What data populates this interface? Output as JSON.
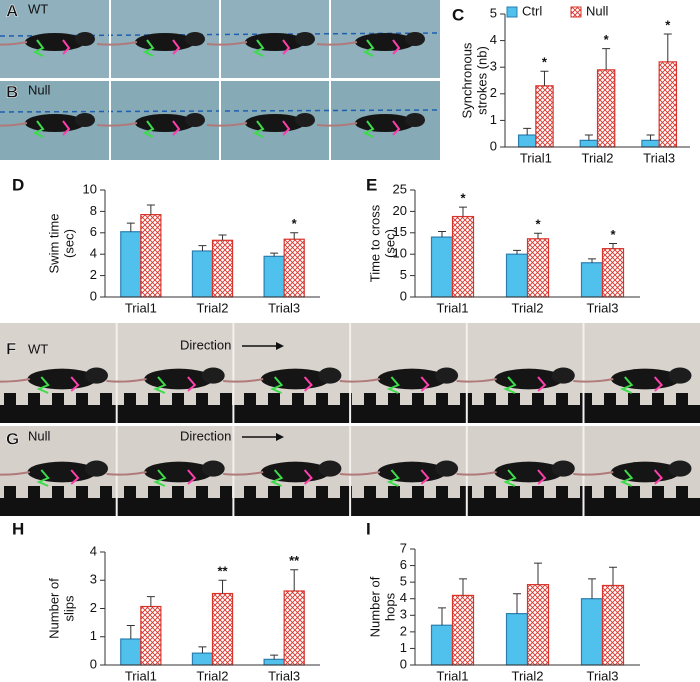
{
  "photo_panels": [
    {
      "letter": "A",
      "label": "WT"
    },
    {
      "letter": "B",
      "label": "Null"
    },
    {
      "letter": "F",
      "label": "WT",
      "annotation": "Direction"
    },
    {
      "letter": "G",
      "label": "Null",
      "annotation": "Direction"
    }
  ],
  "chart_data": [
    {
      "type": "bar",
      "panel_label": "C",
      "ylabel": [
        "Synchronous",
        "strokes (nb)"
      ],
      "categories": [
        "Trial1",
        "Trial2",
        "Trial3"
      ],
      "ylim": [
        0,
        5
      ],
      "yticks": [
        0,
        1,
        2,
        3,
        4,
        5
      ],
      "legend": "top",
      "series": [
        {
          "name": "Ctrl",
          "color": "#4fc1ec",
          "values": [
            0.45,
            0.25,
            0.25
          ],
          "errors": [
            0.25,
            0.2,
            0.2
          ]
        },
        {
          "name": "Null",
          "color": "#d9342b",
          "values": [
            2.3,
            2.9,
            3.2
          ],
          "errors": [
            0.55,
            0.8,
            1.05
          ]
        }
      ],
      "significance": [
        "*",
        "*",
        "*"
      ]
    },
    {
      "type": "bar",
      "panel_label": "D",
      "ylabel": [
        "Swim time",
        "(sec)"
      ],
      "categories": [
        "Trial1",
        "Trial2",
        "Trial3"
      ],
      "ylim": [
        0,
        10
      ],
      "yticks": [
        0,
        2,
        4,
        6,
        8,
        10
      ],
      "series": [
        {
          "color": "#4fc1ec",
          "values": [
            6.1,
            4.3,
            3.8
          ],
          "errors": [
            0.8,
            0.5,
            0.3
          ]
        },
        {
          "color": "#d9342b",
          "values": [
            7.7,
            5.3,
            5.4
          ],
          "errors": [
            0.9,
            0.5,
            0.6
          ]
        }
      ],
      "significance": [
        null,
        null,
        "*"
      ]
    },
    {
      "type": "bar",
      "panel_label": "E",
      "ylabel": [
        "Time to cross",
        "(sec)"
      ],
      "categories": [
        "Trial1",
        "Trial2",
        "Trial3"
      ],
      "ylim": [
        0,
        25
      ],
      "yticks": [
        0,
        5,
        10,
        15,
        20,
        25
      ],
      "series": [
        {
          "color": "#4fc1ec",
          "values": [
            14,
            10,
            8
          ],
          "errors": [
            1.3,
            0.9,
            0.9
          ]
        },
        {
          "color": "#d9342b",
          "values": [
            18.8,
            13.6,
            11.3
          ],
          "errors": [
            2.2,
            1.3,
            1.2
          ]
        }
      ],
      "significance": [
        "*",
        "*",
        "*"
      ]
    },
    {
      "type": "bar",
      "panel_label": "H",
      "ylabel": [
        "Number of",
        "slips"
      ],
      "categories": [
        "Trial1",
        "Trial2",
        "Trial3"
      ],
      "ylim": [
        0,
        4
      ],
      "yticks": [
        0,
        1,
        2,
        3,
        4
      ],
      "series": [
        {
          "color": "#4fc1ec",
          "values": [
            0.92,
            0.42,
            0.2
          ],
          "errors": [
            0.48,
            0.22,
            0.15
          ]
        },
        {
          "color": "#d9342b",
          "values": [
            2.07,
            2.53,
            2.62
          ],
          "errors": [
            0.35,
            0.47,
            0.75
          ]
        }
      ],
      "significance": [
        null,
        "**",
        "**"
      ]
    },
    {
      "type": "bar",
      "panel_label": "I",
      "ylabel": [
        "Number of",
        "hops"
      ],
      "categories": [
        "Trial1",
        "Trial2",
        "Trial3"
      ],
      "ylim": [
        0,
        7
      ],
      "yticks": [
        0,
        1,
        2,
        3,
        4,
        5,
        6,
        7
      ],
      "series": [
        {
          "color": "#4fc1ec",
          "values": [
            2.4,
            3.1,
            4.0
          ],
          "errors": [
            1.05,
            1.2,
            1.2
          ]
        },
        {
          "color": "#d9342b",
          "values": [
            4.2,
            4.85,
            4.8
          ],
          "errors": [
            1.0,
            1.3,
            1.1
          ]
        }
      ]
    }
  ]
}
